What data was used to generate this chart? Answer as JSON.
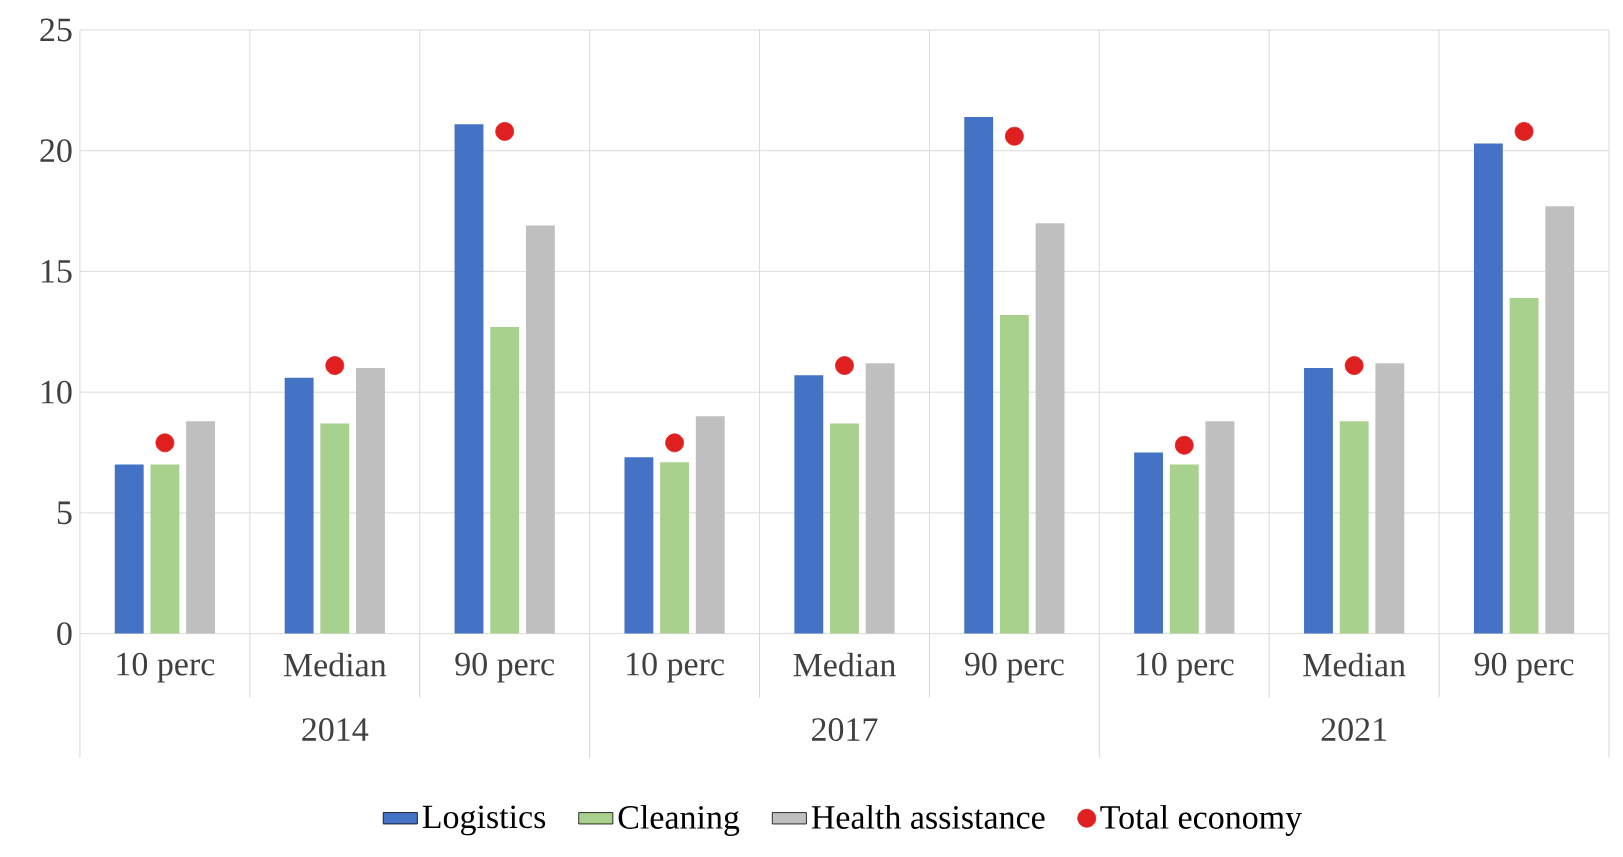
{
  "chart_data": {
    "type": "bar",
    "categories": [
      "10 perc",
      "Median",
      "90 perc",
      "10 perc",
      "Median",
      "90 perc",
      "10 perc",
      "Median",
      "90 perc"
    ],
    "annotations": [
      "2014",
      "2017",
      "2021"
    ],
    "series": [
      {
        "name": "Logistics",
        "color": "#4472c4",
        "values": [
          7.0,
          10.6,
          21.1,
          7.3,
          10.7,
          21.4,
          7.5,
          11.0,
          20.3
        ]
      },
      {
        "name": "Cleaning",
        "color": "#a9d18e",
        "values": [
          7.0,
          8.7,
          12.7,
          7.1,
          8.7,
          13.2,
          7.0,
          8.8,
          13.9
        ]
      },
      {
        "name": "Health assistance",
        "color": "#bfbfbf",
        "values": [
          8.8,
          11.0,
          16.9,
          9.0,
          11.2,
          17.0,
          8.8,
          11.2,
          17.7
        ]
      },
      {
        "name": "Total economy",
        "color": "#e02020",
        "type": "scatter",
        "marker": "circle",
        "values": [
          7.9,
          11.1,
          20.8,
          7.9,
          11.1,
          20.6,
          7.8,
          11.1,
          20.8
        ]
      }
    ],
    "ylim": [
      0,
      25
    ],
    "yticks": [
      0,
      5,
      10,
      15,
      20,
      25
    ],
    "grid": true,
    "legend": "bottom"
  }
}
